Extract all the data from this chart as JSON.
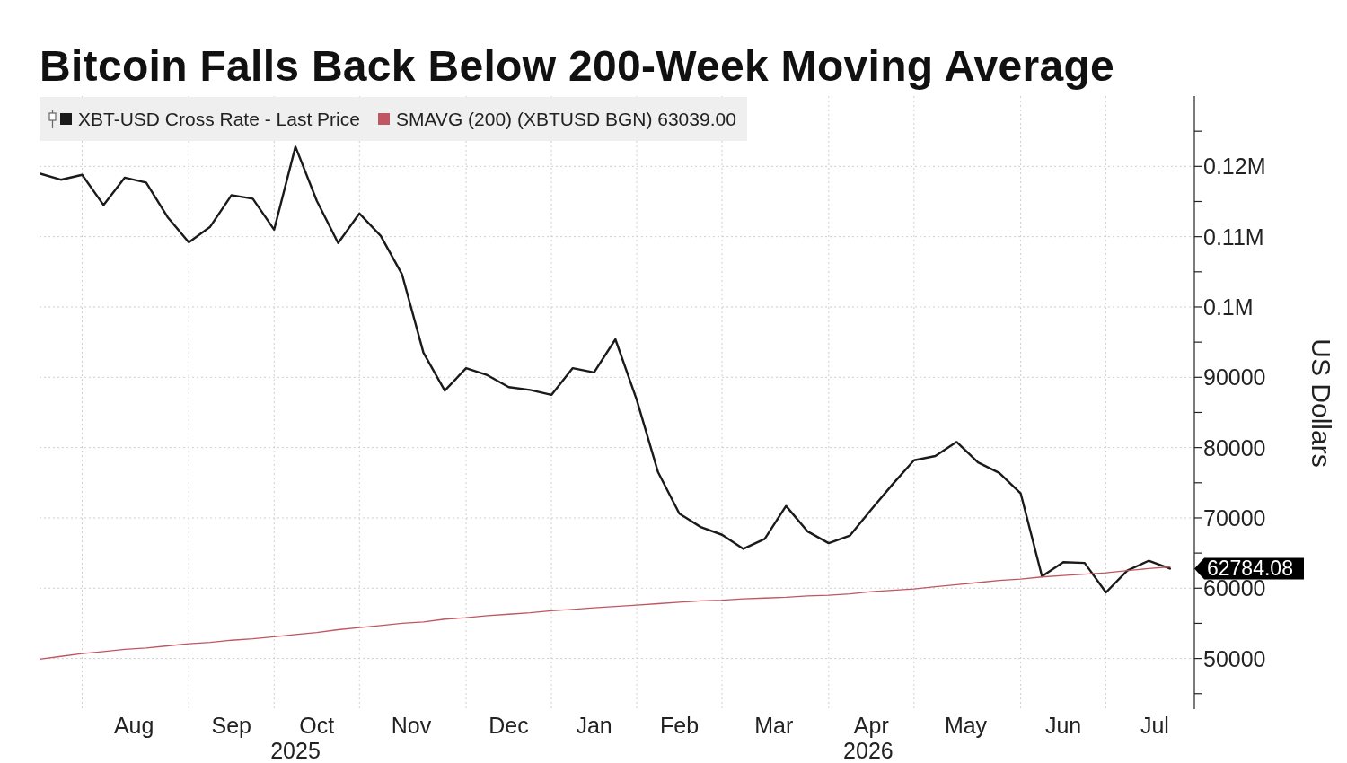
{
  "chart_data": {
    "type": "line",
    "title": "Bitcoin Falls Back Below 200-Week Moving Average",
    "ylabel": "US Dollars",
    "x": [
      "2025-07-20",
      "2025-07-27",
      "2025-08-03",
      "2025-08-10",
      "2025-08-17",
      "2025-08-24",
      "2025-08-31",
      "2025-09-07",
      "2025-09-14",
      "2025-09-21",
      "2025-09-28",
      "2025-10-05",
      "2025-10-12",
      "2025-10-19",
      "2025-10-26",
      "2025-11-02",
      "2025-11-09",
      "2025-11-16",
      "2025-11-23",
      "2025-11-30",
      "2025-12-07",
      "2025-12-14",
      "2025-12-21",
      "2025-12-28",
      "2026-01-04",
      "2026-01-11",
      "2026-01-18",
      "2026-01-25",
      "2026-02-01",
      "2026-02-08",
      "2026-02-15",
      "2026-02-22",
      "2026-03-01",
      "2026-03-08",
      "2026-03-15",
      "2026-03-22",
      "2026-03-29",
      "2026-04-05",
      "2026-04-12",
      "2026-04-19",
      "2026-04-26",
      "2026-05-03",
      "2026-05-10",
      "2026-05-17",
      "2026-05-24",
      "2026-05-31",
      "2026-06-07",
      "2026-06-14",
      "2026-06-21",
      "2026-06-28",
      "2026-07-05",
      "2026-07-12",
      "2026-07-19",
      "2026-07-26"
    ],
    "series": [
      {
        "name": "XBT-USD Cross Rate - Last Price",
        "color": "#1a1a1a",
        "values": [
          119000,
          118100,
          118800,
          114500,
          118400,
          117700,
          112800,
          109200,
          111400,
          115900,
          115400,
          111000,
          122800,
          115100,
          109100,
          113300,
          110100,
          104600,
          93500,
          88100,
          91300,
          90300,
          88600,
          88200,
          87500,
          91300,
          90700,
          95400,
          86800,
          76500,
          70600,
          68700,
          67600,
          65600,
          67000,
          71700,
          68100,
          66400,
          67500,
          71200,
          74800,
          78200,
          78800,
          80800,
          77900,
          76400,
          73500,
          61700,
          63700,
          63600,
          59400,
          62500,
          63900,
          62784.08
        ],
        "value_labels": [
          null,
          null,
          null,
          null,
          null,
          null,
          null,
          null,
          null,
          null,
          null,
          null,
          null,
          null,
          null,
          null,
          null,
          null,
          null,
          null,
          null,
          null,
          null,
          null,
          null,
          null,
          null,
          null,
          null,
          null,
          null,
          null,
          null,
          null,
          null,
          null,
          null,
          null,
          null,
          null,
          null,
          null,
          null,
          null,
          null,
          null,
          null,
          null,
          null,
          null,
          null,
          null,
          null,
          "62784.08"
        ]
      },
      {
        "name": "SMAVG (200) (XBTUSD BGN) 63039.00",
        "color": "#bf5662",
        "values": [
          49900,
          50300,
          50700,
          51000,
          51300,
          51500,
          51800,
          52100,
          52300,
          52600,
          52800,
          53100,
          53400,
          53700,
          54100,
          54400,
          54700,
          55000,
          55200,
          55600,
          55800,
          56100,
          56300,
          56500,
          56800,
          57000,
          57200,
          57400,
          57600,
          57800,
          58000,
          58200,
          58300,
          58500,
          58600,
          58700,
          58900,
          59000,
          59200,
          59500,
          59700,
          59900,
          60200,
          60500,
          60800,
          61100,
          61300,
          61600,
          61800,
          62000,
          62200,
          62500,
          62800,
          63039
        ]
      }
    ],
    "xlim": [
      "2025-07-20",
      "2026-08-03"
    ],
    "xticks": [
      {
        "value": "2025-08-03",
        "label": null
      },
      {
        "value": "2025-08-20",
        "label": "Aug"
      },
      {
        "value": "2025-09-07",
        "label": null
      },
      {
        "value": "2025-09-21",
        "label": "Sep"
      },
      {
        "value": "2025-10-05",
        "label": null
      },
      {
        "value": "2025-10-19",
        "label": "Oct"
      },
      {
        "value": "2025-11-02",
        "label": null
      },
      {
        "value": "2025-11-19",
        "label": "Nov"
      },
      {
        "value": "2025-12-07",
        "label": null
      },
      {
        "value": "2025-12-21",
        "label": "Dec"
      },
      {
        "value": "2026-01-04",
        "label": null
      },
      {
        "value": "2026-01-18",
        "label": "Jan"
      },
      {
        "value": "2026-02-01",
        "label": null
      },
      {
        "value": "2026-02-15",
        "label": "Feb"
      },
      {
        "value": "2026-03-01",
        "label": null
      },
      {
        "value": "2026-03-18",
        "label": "Mar"
      },
      {
        "value": "2026-04-05",
        "label": null
      },
      {
        "value": "2026-04-19",
        "label": "Apr"
      },
      {
        "value": "2026-05-03",
        "label": null
      },
      {
        "value": "2026-05-20",
        "label": "May"
      },
      {
        "value": "2026-06-07",
        "label": null
      },
      {
        "value": "2026-06-21",
        "label": "Jun"
      },
      {
        "value": "2026-07-05",
        "label": null
      },
      {
        "value": "2026-07-21",
        "label": "Jul"
      }
    ],
    "x2lim": [
      "2025-07-20",
      "2026-08-03"
    ],
    "x2ticks": [
      {
        "value": "2025-10-12",
        "label": "2025"
      },
      {
        "value": "2026-04-18",
        "label": "2026"
      }
    ],
    "ylim": [
      42800,
      130000
    ],
    "yticks": [
      {
        "value": 45000,
        "label": null
      },
      50000,
      {
        "value": 55000,
        "label": null
      },
      60000,
      {
        "value": 65000,
        "label": null
      },
      70000,
      {
        "value": 75000,
        "label": null
      },
      80000,
      {
        "value": 85000,
        "label": null
      },
      90000,
      {
        "value": 95000,
        "label": null
      },
      {
        "value": 100000,
        "label": "0.1M"
      },
      {
        "value": 105000,
        "label": null
      },
      {
        "value": 110000,
        "label": "0.11M"
      },
      {
        "value": 115000,
        "label": null
      },
      {
        "value": 120000,
        "label": "0.12M"
      },
      {
        "value": 125000,
        "label": null
      }
    ],
    "grid": true,
    "legend": "top left"
  }
}
